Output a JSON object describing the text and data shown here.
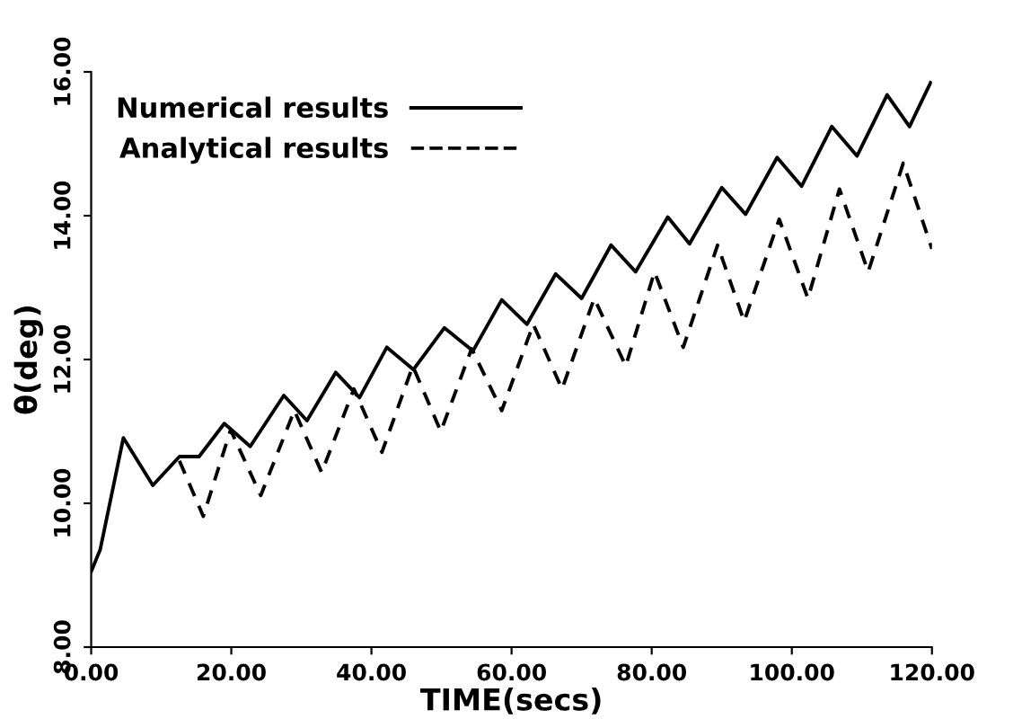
{
  "chart_data": {
    "type": "line",
    "xlabel": "TIME(secs)",
    "ylabel": "θ(deg)",
    "xlim": [
      0,
      120
    ],
    "ylim": [
      8,
      16
    ],
    "xticks": [
      {
        "value": 0,
        "label": "0.00"
      },
      {
        "value": 20,
        "label": "20.00"
      },
      {
        "value": 40,
        "label": "40.00"
      },
      {
        "value": 60,
        "label": "60.00"
      },
      {
        "value": 80,
        "label": "80.00"
      },
      {
        "value": 100,
        "label": "100.00"
      },
      {
        "value": 120,
        "label": "120.00"
      }
    ],
    "yticks": [
      {
        "value": 8,
        "label": "8.00"
      },
      {
        "value": 10,
        "label": "10.00"
      },
      {
        "value": 12,
        "label": "12.00"
      },
      {
        "value": 14,
        "label": "14.00"
      },
      {
        "value": 16,
        "label": "16.00"
      }
    ],
    "grid": false,
    "legend": "top left",
    "series": [
      {
        "name": "Numerical results",
        "color": "#000000",
        "line_style": "solid",
        "x": [
          0,
          1.3,
          4.6,
          8.8,
          12.6,
          15.4,
          19.0,
          22.7,
          27.5,
          30.8,
          34.9,
          38.3,
          42.2,
          46,
          50.4,
          54.5,
          58.6,
          62.2,
          66.3,
          70.0,
          74.2,
          77.7,
          82.3,
          85.4,
          90.0,
          93.4,
          97.9,
          101.4,
          105.7,
          109.3,
          113.6,
          116.8,
          119.8
        ],
        "values": [
          9.05,
          9.36,
          10.91,
          10.25,
          10.65,
          10.65,
          11.11,
          10.79,
          11.5,
          11.15,
          11.82,
          11.47,
          12.17,
          11.86,
          12.44,
          12.12,
          12.83,
          12.49,
          13.19,
          12.85,
          13.59,
          13.22,
          13.98,
          13.61,
          14.39,
          14.02,
          14.81,
          14.41,
          15.24,
          14.83,
          15.68,
          15.24,
          15.85
        ]
      },
      {
        "name": "Analytical results",
        "color": "#000000",
        "line_style": "dashed",
        "x": [
          12.6,
          16.0,
          19.9,
          24.2,
          29.0,
          32.9,
          37.5,
          41.5,
          45.9,
          49.9,
          54.3,
          58.6,
          63.1,
          67.2,
          71.8,
          76.3,
          80.4,
          84.5,
          89.4,
          93.2,
          98.2,
          102.3,
          106.8,
          110.9,
          115.9,
          120
        ],
        "values": [
          10.59,
          9.82,
          11.02,
          10.11,
          11.29,
          10.43,
          11.59,
          10.71,
          11.91,
          11.0,
          12.15,
          11.29,
          12.49,
          11.59,
          12.85,
          11.91,
          13.22,
          12.17,
          13.59,
          12.53,
          13.95,
          12.85,
          14.37,
          13.22,
          14.73,
          13.54
        ]
      }
    ]
  }
}
